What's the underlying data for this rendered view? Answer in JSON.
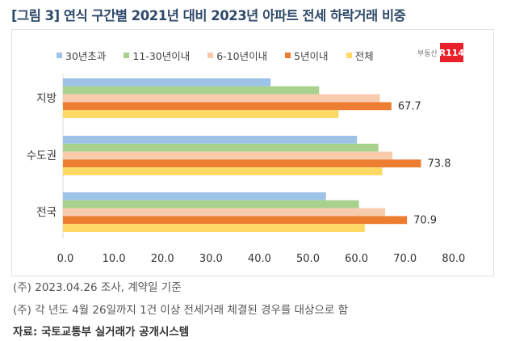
{
  "title": "[그림 3] 연식 구간별 2021년 대비 2023년 아파트 전세 하락거래 비중",
  "logo": {
    "text": "부동산",
    "badge": "R114"
  },
  "chart_data": {
    "type": "bar",
    "orientation": "horizontal",
    "title": "",
    "categories": [
      "지방",
      "수도권",
      "전국"
    ],
    "series": [
      {
        "name": "30년초과",
        "color": "#9dc3e6",
        "values": [
          42.8,
          60.6,
          54.2
        ]
      },
      {
        "name": "11-30년이내",
        "color": "#a9d18e",
        "values": [
          52.8,
          65.0,
          61.0
        ]
      },
      {
        "name": "6-10년이내",
        "color": "#f8cbad",
        "values": [
          65.3,
          67.9,
          66.4
        ]
      },
      {
        "name": "5년이내",
        "color": "#ed7d31",
        "values": [
          67.7,
          73.8,
          70.9
        ],
        "data_labels": [
          "67.7",
          "73.8",
          "70.9"
        ]
      },
      {
        "name": "전체",
        "color": "#ffd966",
        "values": [
          56.8,
          65.8,
          62.2
        ]
      }
    ],
    "xlim": [
      0,
      80
    ],
    "xticks": [
      "0.0",
      "10.0",
      "20.0",
      "30.0",
      "40.0",
      "50.0",
      "60.0",
      "70.0",
      "80.0"
    ],
    "grid": false,
    "legend": "top"
  },
  "notes": [
    "(주) 2023.04.26 조사, 계약일 기준",
    "(주) 각 년도 4월 26일까지 1건 이상 전세거래 체결된 경우를 대상으로 함"
  ],
  "source": "자료: 국토교통부 실거래가 공개시스템"
}
